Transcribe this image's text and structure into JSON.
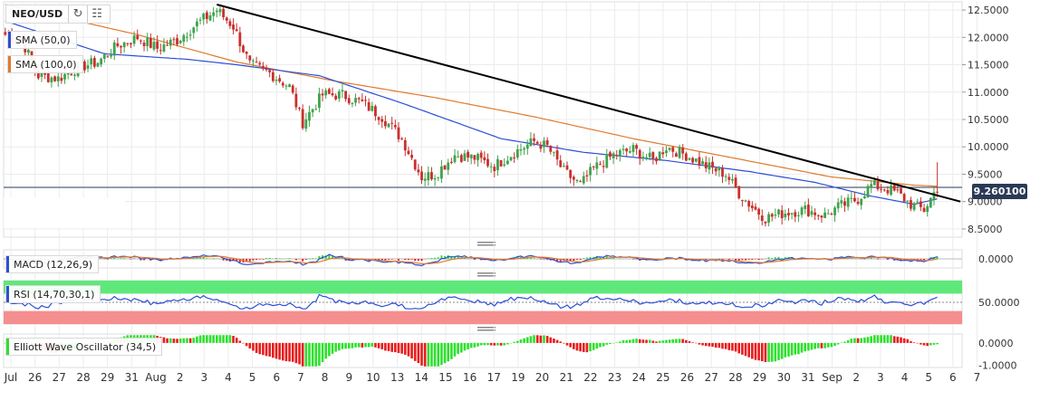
{
  "chart_data": {
    "type": "candlestick",
    "symbol": "NEO/USD",
    "timeframe_labels": {
      "x_ticks": [
        "Jul",
        "26",
        "27",
        "28",
        "29",
        "31",
        "Aug",
        "2",
        "3",
        "4",
        "5",
        "6",
        "7",
        "8",
        "9",
        "10",
        "13",
        "14",
        "15",
        "16",
        "17",
        "19",
        "20",
        "21",
        "22",
        "23",
        "24",
        "25",
        "26",
        "27",
        "28",
        "29",
        "30",
        "31",
        "Sep",
        "2",
        "3",
        "4",
        "5",
        "6",
        "7"
      ]
    },
    "price_axis": {
      "ticks": [
        "12.5000",
        "12.0000",
        "11.5000",
        "11.0000",
        "10.5000",
        "10.0000",
        "9.5000",
        "9.0000",
        "8.5000"
      ],
      "ylim": [
        8.35,
        12.65
      ]
    },
    "last_price": "9.260100",
    "last_price_value": 9.2601,
    "overlays": [
      {
        "name": "SMA (50,0)",
        "color": "#2c4fd6"
      },
      {
        "name": "SMA (100,0)",
        "color": "#e07a2e"
      }
    ],
    "keypoints": [
      [
        0,
        12.05
      ],
      [
        5,
        11.95
      ],
      [
        10,
        11.3
      ],
      [
        16,
        11.25
      ],
      [
        22,
        11.45
      ],
      [
        28,
        11.55
      ],
      [
        34,
        11.85
      ],
      [
        40,
        12.0
      ],
      [
        46,
        11.8
      ],
      [
        52,
        11.95
      ],
      [
        58,
        12.25
      ],
      [
        64,
        12.5
      ],
      [
        69,
        12.2
      ],
      [
        74,
        11.5
      ],
      [
        80,
        11.35
      ],
      [
        86,
        11.1
      ],
      [
        90,
        10.45
      ],
      [
        96,
        10.95
      ],
      [
        102,
        10.95
      ],
      [
        108,
        10.8
      ],
      [
        114,
        10.55
      ],
      [
        120,
        10.15
      ],
      [
        126,
        9.45
      ],
      [
        130,
        9.5
      ],
      [
        136,
        9.85
      ],
      [
        142,
        9.8
      ],
      [
        148,
        9.65
      ],
      [
        154,
        9.9
      ],
      [
        160,
        10.1
      ],
      [
        164,
        10.0
      ],
      [
        169,
        9.55
      ],
      [
        174,
        9.3
      ],
      [
        178,
        9.6
      ],
      [
        184,
        9.85
      ],
      [
        190,
        9.95
      ],
      [
        196,
        9.75
      ],
      [
        200,
        10.0
      ],
      [
        206,
        9.85
      ],
      [
        212,
        9.65
      ],
      [
        218,
        9.5
      ],
      [
        222,
        9.15
      ],
      [
        226,
        8.9
      ],
      [
        230,
        8.7
      ],
      [
        236,
        8.8
      ],
      [
        242,
        8.85
      ],
      [
        248,
        8.75
      ],
      [
        252,
        8.9
      ],
      [
        258,
        9.05
      ],
      [
        262,
        9.3
      ],
      [
        266,
        9.25
      ],
      [
        270,
        9.15
      ],
      [
        274,
        8.95
      ],
      [
        278,
        8.85
      ],
      [
        282,
        9.26
      ]
    ],
    "sma50": [
      [
        0,
        12.3
      ],
      [
        30,
        11.7
      ],
      [
        55,
        11.6
      ],
      [
        70,
        11.5
      ],
      [
        95,
        11.3
      ],
      [
        120,
        10.8
      ],
      [
        150,
        10.15
      ],
      [
        175,
        9.9
      ],
      [
        200,
        9.75
      ],
      [
        225,
        9.55
      ],
      [
        245,
        9.35
      ],
      [
        262,
        9.1
      ],
      [
        275,
        8.95
      ],
      [
        282,
        9.05
      ]
    ],
    "sma100": [
      [
        0,
        12.6
      ],
      [
        40,
        12.05
      ],
      [
        70,
        11.55
      ],
      [
        100,
        11.2
      ],
      [
        130,
        10.9
      ],
      [
        160,
        10.55
      ],
      [
        190,
        10.15
      ],
      [
        220,
        9.8
      ],
      [
        250,
        9.45
      ],
      [
        275,
        9.3
      ],
      [
        282,
        9.28
      ]
    ],
    "trendline": [
      [
        64,
        12.6
      ],
      [
        289,
        9.0
      ]
    ],
    "spike": {
      "high": 9.72,
      "low": 9.08
    },
    "macd": {
      "label": "MACD (12,26,9)",
      "ticks": [
        "0.0000"
      ],
      "ylim": [
        -0.45,
        0.45
      ]
    },
    "rsi": {
      "label": "RSI (14,70,30,1)",
      "ticks": [
        "50.0000"
      ],
      "overbought": 70,
      "oversold": 30,
      "ylim": [
        0,
        100
      ]
    },
    "ewo": {
      "label": "Elliott Wave Oscillator (34,5)",
      "ticks": [
        "0.0000",
        "-1.0000"
      ],
      "ylim": [
        -1.1,
        0.4
      ],
      "up_color": "#2ee02e",
      "down_color": "#e81c1c"
    },
    "colors": {
      "up": "#3fa34d",
      "down": "#c9302c",
      "grid": "#ececec",
      "trendline": "#000000",
      "rsi_overbought_fill": "#5fe87a",
      "rsi_oversold_fill": "#f58e8e",
      "price_tag_bg": "#2a3a55"
    }
  },
  "toolbar": {
    "symbol": "NEO/USD",
    "refresh_icon": "refresh-icon",
    "bars_icon": "bars-settings-icon"
  }
}
